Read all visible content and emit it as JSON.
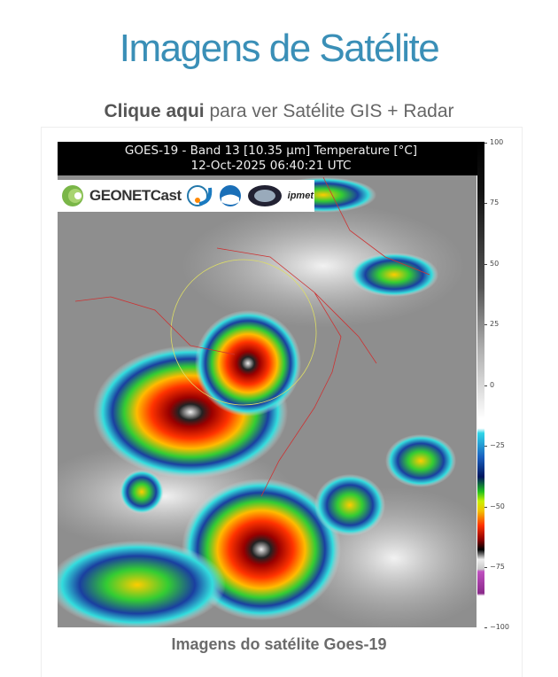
{
  "page": {
    "title": "Imagens de Satélite",
    "link_bold": "Clique aqui",
    "link_rest": " para ver Satélite GIS + Radar",
    "caption": "Imagens do satélite Goes-19"
  },
  "satellite_image": {
    "header_line1": "GOES-19 - Band 13 [10.35 µm] Temperature [°C]",
    "header_line2": "12-Oct-2025 06:40:21 UTC",
    "logos": [
      "GEONETCast",
      "INPE",
      "NOAA",
      "EUMETSAT",
      "ipmet"
    ],
    "colorbar_ticks": [
      "100",
      "75",
      "50",
      "25",
      "0",
      "−25",
      "−50",
      "−75",
      "−100"
    ],
    "colors": {
      "title": "#3a8fb7",
      "caption": "#6b6b6b"
    }
  }
}
